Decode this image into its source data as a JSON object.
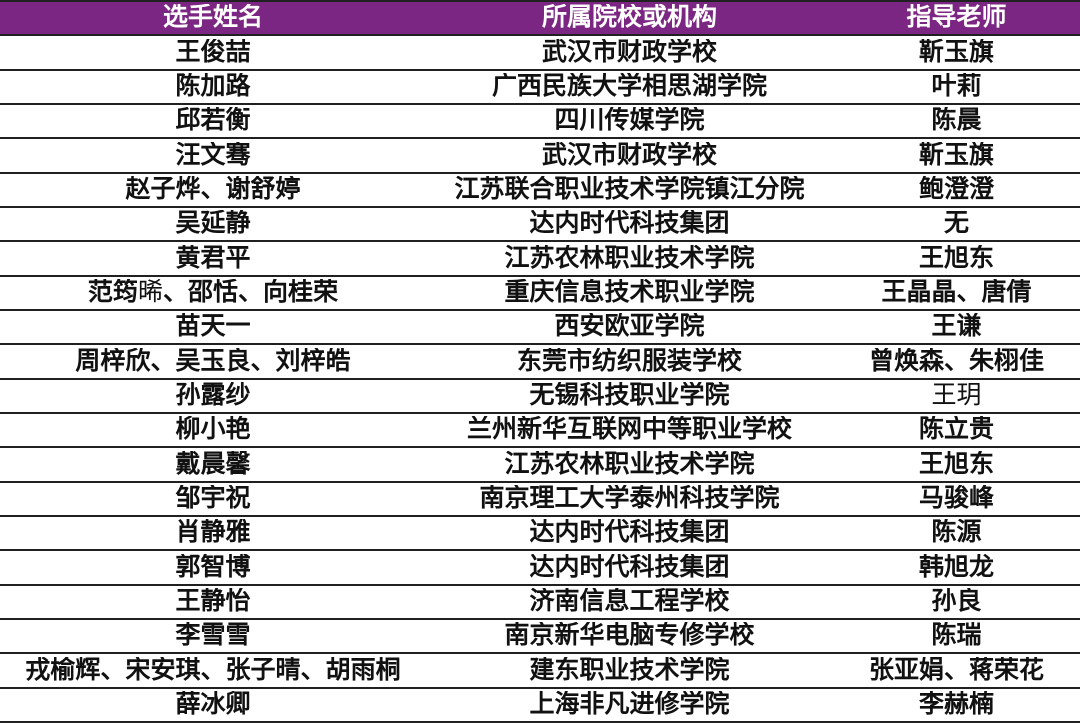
{
  "colors": {
    "header_bg": "#7B2682",
    "header_text": "#FFFFFF",
    "row_bg": "#FFFFFF",
    "row_text": "#111111",
    "border": "#202020"
  },
  "fallback_chars": [
    "晞"
  ],
  "table": {
    "columns": [
      {
        "label": "选手姓名"
      },
      {
        "label": "所属院校或机构"
      },
      {
        "label": "指导老师"
      }
    ],
    "rows": [
      {
        "name": "王俊喆",
        "school": "武汉市财政学校",
        "teacher": "靳玉旗"
      },
      {
        "name": "陈加路",
        "school": "广西民族大学相思湖学院",
        "teacher": "叶莉"
      },
      {
        "name": "邱若衡",
        "school": "四川传媒学院",
        "teacher": "陈晨"
      },
      {
        "name": "汪文骞",
        "school": "武汉市财政学校",
        "teacher": "靳玉旗"
      },
      {
        "name": "赵子烨、谢舒婷",
        "school": "江苏联合职业技术学院镇江分院",
        "teacher": "鲍澄澄"
      },
      {
        "name": "吴延静",
        "school": "达内时代科技集团",
        "teacher": "无"
      },
      {
        "name": "黄君平",
        "school": "江苏农林职业技术学院",
        "teacher": "王旭东"
      },
      {
        "name": "范筠晞、邵恬、向桂荣",
        "school": "重庆信息技术职业学院",
        "teacher": "王晶晶、唐倩"
      },
      {
        "name": "苗天一",
        "school": "西安欧亚学院",
        "teacher": "王谦"
      },
      {
        "name": "周梓欣、吴玉良、刘梓皓",
        "school": "东莞市纺织服装学校",
        "teacher": "曾焕森、朱栩佳"
      },
      {
        "name": "孙露纱",
        "school": "无锡科技职业学院",
        "teacher": "王玥",
        "teacher_style": "fallback"
      },
      {
        "name": "柳小艳",
        "school": "兰州新华互联网中等职业学校",
        "teacher": "陈立贵"
      },
      {
        "name": "戴晨馨",
        "school": "江苏农林职业技术学院",
        "teacher": "王旭东"
      },
      {
        "name": "邹宇祝",
        "school": "南京理工大学泰州科技学院",
        "teacher": "马骏峰"
      },
      {
        "name": "肖静雅",
        "school": "达内时代科技集团",
        "teacher": "陈源"
      },
      {
        "name": "郭智博",
        "school": "达内时代科技集团",
        "teacher": "韩旭龙"
      },
      {
        "name": "王静怡",
        "school": "济南信息工程学校",
        "teacher": "孙良"
      },
      {
        "name": "李雪雪",
        "school": "南京新华电脑专修学校",
        "teacher": "陈瑞"
      },
      {
        "name": "戎榆辉、宋安琪、张子晴、胡雨桐",
        "school": "建东职业技术学院",
        "teacher": "张亚娟、蒋荣花"
      },
      {
        "name": "薛冰卿",
        "school": "上海非凡进修学院",
        "teacher": "李赫楠"
      }
    ]
  }
}
